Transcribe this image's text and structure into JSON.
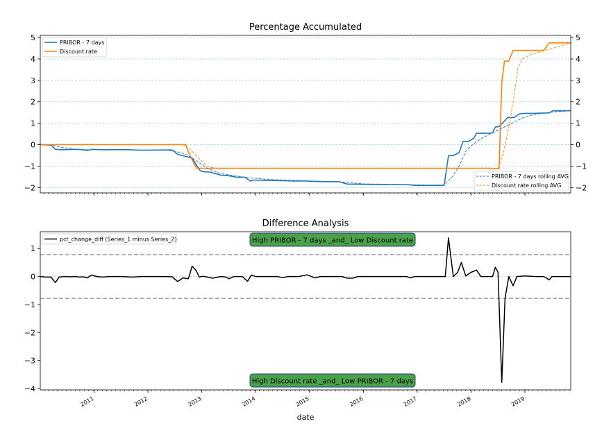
{
  "chart_data": [
    {
      "type": "line",
      "title": "Percentage Accumulated",
      "xlim": [
        2010.1,
        2019.95
      ],
      "ylim": [
        -2.25,
        5.1
      ],
      "yticks": [
        -2,
        -1,
        0,
        1,
        2,
        3,
        4,
        5
      ],
      "grid": "horizontal, dashed, light blue",
      "legends": [
        {
          "placement": "upper left",
          "entries": [
            "PRIBOR - 7 days",
            "Discount rate"
          ]
        },
        {
          "placement": "lower right",
          "entries": [
            "PRIBOR - 7 days rolling AVG",
            "Discount rate rolling AVG"
          ]
        }
      ],
      "series": [
        {
          "name": "PRIBOR - 7 days",
          "color": "#1f77b4",
          "style": "solid",
          "points": [
            [
              2010.1,
              0.0
            ],
            [
              2010.3,
              -0.02
            ],
            [
              2010.38,
              -0.22
            ],
            [
              2010.5,
              -0.24
            ],
            [
              2010.7,
              -0.22
            ],
            [
              2010.85,
              -0.23
            ],
            [
              2010.98,
              -0.27
            ],
            [
              2011.05,
              -0.22
            ],
            [
              2011.3,
              -0.24
            ],
            [
              2011.6,
              -0.23
            ],
            [
              2012.0,
              -0.26
            ],
            [
              2012.4,
              -0.25
            ],
            [
              2012.55,
              -0.25
            ],
            [
              2012.65,
              -0.45
            ],
            [
              2012.8,
              -0.55
            ],
            [
              2012.92,
              -0.62
            ],
            [
              2013.0,
              -0.95
            ],
            [
              2013.07,
              -1.22
            ],
            [
              2013.15,
              -1.27
            ],
            [
              2013.25,
              -1.28
            ],
            [
              2013.35,
              -1.35
            ],
            [
              2013.45,
              -1.42
            ],
            [
              2013.6,
              -1.45
            ],
            [
              2013.75,
              -1.52
            ],
            [
              2013.9,
              -1.52
            ],
            [
              2014.0,
              -1.7
            ],
            [
              2014.05,
              -1.65
            ],
            [
              2014.15,
              -1.66
            ],
            [
              2014.4,
              -1.67
            ],
            [
              2014.6,
              -1.68
            ],
            [
              2014.8,
              -1.7
            ],
            [
              2015.05,
              -1.7
            ],
            [
              2015.2,
              -1.72
            ],
            [
              2015.5,
              -1.73
            ],
            [
              2015.65,
              -1.73
            ],
            [
              2015.8,
              -1.84
            ],
            [
              2016.0,
              -1.85
            ],
            [
              2016.3,
              -1.86
            ],
            [
              2016.6,
              -1.86
            ],
            [
              2016.95,
              -1.87
            ],
            [
              2017.05,
              -1.9
            ],
            [
              2017.2,
              -1.9
            ],
            [
              2017.4,
              -1.9
            ],
            [
              2017.6,
              -1.9
            ],
            [
              2017.68,
              -0.52
            ],
            [
              2017.78,
              -0.5
            ],
            [
              2017.88,
              -0.36
            ],
            [
              2017.95,
              0.15
            ],
            [
              2018.05,
              0.15
            ],
            [
              2018.15,
              0.3
            ],
            [
              2018.2,
              0.53
            ],
            [
              2018.35,
              0.53
            ],
            [
              2018.45,
              0.53
            ],
            [
              2018.5,
              0.55
            ],
            [
              2018.55,
              0.82
            ],
            [
              2018.62,
              0.85
            ],
            [
              2018.7,
              1.05
            ],
            [
              2018.78,
              1.27
            ],
            [
              2018.9,
              1.27
            ],
            [
              2019.0,
              1.44
            ],
            [
              2019.1,
              1.46
            ],
            [
              2019.25,
              1.46
            ],
            [
              2019.4,
              1.47
            ],
            [
              2019.55,
              1.48
            ],
            [
              2019.62,
              1.58
            ],
            [
              2019.75,
              1.58
            ],
            [
              2019.95,
              1.58
            ]
          ]
        },
        {
          "name": "Discount rate",
          "color": "#ff7f0e",
          "style": "solid",
          "points": [
            [
              2010.1,
              0.0
            ],
            [
              2012.8,
              0.0
            ],
            [
              2012.85,
              -0.35
            ],
            [
              2012.92,
              -0.7
            ],
            [
              2013.0,
              -1.1
            ],
            [
              2017.4,
              -1.1
            ],
            [
              2018.45,
              -1.1
            ],
            [
              2018.62,
              -1.12
            ],
            [
              2018.67,
              2.9
            ],
            [
              2018.72,
              3.9
            ],
            [
              2018.8,
              3.9
            ],
            [
              2018.88,
              4.4
            ],
            [
              2019.35,
              4.4
            ],
            [
              2019.45,
              4.4
            ],
            [
              2019.55,
              4.75
            ],
            [
              2019.95,
              4.75
            ]
          ]
        },
        {
          "name": "PRIBOR - 7 days rolling AVG",
          "color": "#1f77b4",
          "style": "dashed",
          "points": [
            [
              2010.1,
              0.0
            ],
            [
              2010.3,
              -0.02
            ],
            [
              2010.45,
              -0.1
            ],
            [
              2010.7,
              -0.2
            ],
            [
              2011.0,
              -0.24
            ],
            [
              2011.5,
              -0.24
            ],
            [
              2012.0,
              -0.25
            ],
            [
              2012.4,
              -0.25
            ],
            [
              2012.6,
              -0.3
            ],
            [
              2012.8,
              -0.45
            ],
            [
              2013.0,
              -0.75
            ],
            [
              2013.2,
              -1.1
            ],
            [
              2013.45,
              -1.35
            ],
            [
              2013.7,
              -1.45
            ],
            [
              2014.0,
              -1.55
            ],
            [
              2014.3,
              -1.62
            ],
            [
              2014.7,
              -1.66
            ],
            [
              2015.1,
              -1.69
            ],
            [
              2015.5,
              -1.72
            ],
            [
              2015.8,
              -1.76
            ],
            [
              2016.1,
              -1.83
            ],
            [
              2016.6,
              -1.85
            ],
            [
              2017.0,
              -1.87
            ],
            [
              2017.3,
              -1.89
            ],
            [
              2017.6,
              -1.88
            ],
            [
              2017.75,
              -1.5
            ],
            [
              2017.9,
              -0.9
            ],
            [
              2018.0,
              -0.3
            ],
            [
              2018.15,
              0.05
            ],
            [
              2018.3,
              0.3
            ],
            [
              2018.5,
              0.55
            ],
            [
              2018.7,
              0.8
            ],
            [
              2018.9,
              1.05
            ],
            [
              2019.1,
              1.3
            ],
            [
              2019.3,
              1.42
            ],
            [
              2019.6,
              1.52
            ],
            [
              2019.95,
              1.58
            ]
          ]
        },
        {
          "name": "Discount rate rolling AVG",
          "color": "#ff7f0e",
          "style": "dashed",
          "points": [
            [
              2010.1,
              0.0
            ],
            [
              2012.75,
              0.0
            ],
            [
              2012.9,
              -0.25
            ],
            [
              2013.05,
              -0.65
            ],
            [
              2013.2,
              -1.0
            ],
            [
              2013.35,
              -1.1
            ],
            [
              2018.6,
              -1.1
            ],
            [
              2018.7,
              -0.4
            ],
            [
              2018.8,
              0.8
            ],
            [
              2018.9,
              2.3
            ],
            [
              2018.97,
              3.6
            ],
            [
              2019.05,
              4.0
            ],
            [
              2019.2,
              4.2
            ],
            [
              2019.4,
              4.35
            ],
            [
              2019.55,
              4.45
            ],
            [
              2019.75,
              4.6
            ],
            [
              2019.95,
              4.75
            ]
          ]
        }
      ]
    },
    {
      "type": "line",
      "title": "Difference Analysis",
      "xlabel": "date",
      "xlim": [
        2010.1,
        2019.95
      ],
      "ylim": [
        -4.05,
        1.6
      ],
      "yticks": [
        -4,
        -3,
        -2,
        -1,
        0,
        1
      ],
      "xticks": [
        "2011",
        "2012",
        "2013",
        "2014",
        "2015",
        "2016",
        "2017",
        "2018",
        "2019"
      ],
      "thresholds": [
        0.78,
        -0.78
      ],
      "legend": {
        "placement": "upper left",
        "entries": [
          "pct_change_diff (Series_1 minus Series_2)"
        ]
      },
      "annotations": [
        {
          "text": "High PRIBOR - 7 days _and_ Low Discount rate",
          "placement": "top-center",
          "color": "#4aa14a"
        },
        {
          "text": "High Discount rate _and_ Low PRIBOR - 7 days",
          "placement": "bottom-center",
          "color": "#4aa14a"
        }
      ],
      "series": [
        {
          "name": "pct_change_diff (Series_1 minus Series_2)",
          "color": "#000000",
          "style": "solid",
          "points": [
            [
              2010.1,
              0.0
            ],
            [
              2010.2,
              -0.02
            ],
            [
              2010.3,
              -0.02
            ],
            [
              2010.38,
              -0.22
            ],
            [
              2010.45,
              -0.02
            ],
            [
              2010.55,
              0.0
            ],
            [
              2010.65,
              -0.01
            ],
            [
              2010.75,
              0.0
            ],
            [
              2010.82,
              -0.02
            ],
            [
              2010.9,
              -0.01
            ],
            [
              2010.97,
              -0.05
            ],
            [
              2011.05,
              0.05
            ],
            [
              2011.15,
              0.0
            ],
            [
              2011.25,
              -0.02
            ],
            [
              2011.4,
              0.0
            ],
            [
              2011.6,
              0.0
            ],
            [
              2011.8,
              -0.02
            ],
            [
              2012.0,
              0.0
            ],
            [
              2012.2,
              0.0
            ],
            [
              2012.4,
              0.0
            ],
            [
              2012.55,
              -0.01
            ],
            [
              2012.65,
              -0.18
            ],
            [
              2012.75,
              -0.05
            ],
            [
              2012.85,
              -0.08
            ],
            [
              2012.92,
              0.37
            ],
            [
              2013.0,
              0.2
            ],
            [
              2013.05,
              -0.02
            ],
            [
              2013.12,
              0.01
            ],
            [
              2013.2,
              -0.02
            ],
            [
              2013.3,
              -0.06
            ],
            [
              2013.45,
              0.0
            ],
            [
              2013.55,
              -0.02
            ],
            [
              2013.6,
              -0.08
            ],
            [
              2013.7,
              0.0
            ],
            [
              2013.85,
              0.0
            ],
            [
              2013.95,
              -0.17
            ],
            [
              2014.02,
              0.05
            ],
            [
              2014.1,
              0.0
            ],
            [
              2014.3,
              0.0
            ],
            [
              2014.5,
              0.0
            ],
            [
              2014.6,
              -0.04
            ],
            [
              2014.7,
              0.0
            ],
            [
              2014.9,
              0.0
            ],
            [
              2015.05,
              0.06
            ],
            [
              2015.2,
              -0.05
            ],
            [
              2015.3,
              0.0
            ],
            [
              2015.55,
              0.0
            ],
            [
              2015.7,
              0.0
            ],
            [
              2015.8,
              -0.06
            ],
            [
              2015.9,
              -0.06
            ],
            [
              2016.0,
              0.0
            ],
            [
              2016.3,
              0.0
            ],
            [
              2016.6,
              0.0
            ],
            [
              2016.9,
              0.0
            ],
            [
              2016.97,
              -0.05
            ],
            [
              2017.05,
              0.0
            ],
            [
              2017.3,
              0.0
            ],
            [
              2017.55,
              0.0
            ],
            [
              2017.62,
              0.0
            ],
            [
              2017.68,
              1.38
            ],
            [
              2017.77,
              0.0
            ],
            [
              2017.85,
              0.15
            ],
            [
              2017.92,
              0.5
            ],
            [
              2018.0,
              0.02
            ],
            [
              2018.1,
              0.15
            ],
            [
              2018.2,
              0.23
            ],
            [
              2018.28,
              0.0
            ],
            [
              2018.4,
              0.0
            ],
            [
              2018.5,
              0.0
            ],
            [
              2018.55,
              0.33
            ],
            [
              2018.6,
              0.15
            ],
            [
              2018.67,
              -3.78
            ],
            [
              2018.73,
              -0.78
            ],
            [
              2018.8,
              0.0
            ],
            [
              2018.88,
              -0.33
            ],
            [
              2018.95,
              0.0
            ],
            [
              2019.1,
              0.02
            ],
            [
              2019.3,
              0.0
            ],
            [
              2019.45,
              0.0
            ],
            [
              2019.55,
              -0.12
            ],
            [
              2019.6,
              0.0
            ],
            [
              2019.75,
              0.0
            ],
            [
              2019.95,
              0.0
            ]
          ]
        }
      ]
    }
  ],
  "yticks_top_labels": [
    "−2",
    "−1",
    "0",
    "1",
    "2",
    "3",
    "4",
    "5"
  ],
  "yticks_bottom_labels": [
    "−4",
    "−3",
    "−2",
    "−1",
    "0",
    "1"
  ]
}
